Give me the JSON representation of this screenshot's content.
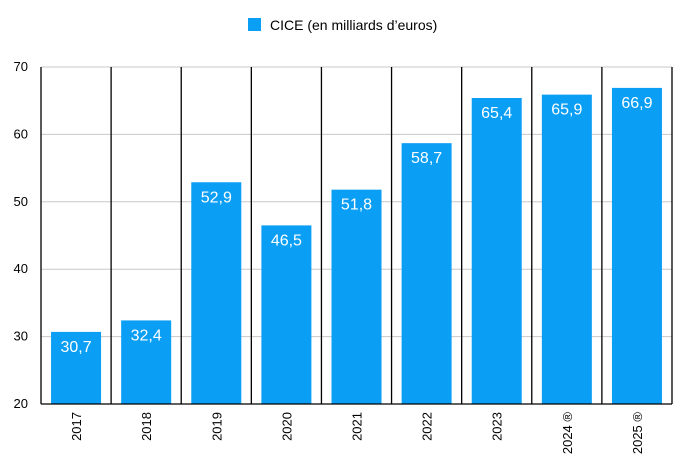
{
  "chart_data": {
    "type": "bar",
    "title": "",
    "xlabel": "",
    "ylabel": "",
    "categories": [
      "2017",
      "2018",
      "2019",
      "2020",
      "2021",
      "2022",
      "2023",
      "2024 ®",
      "2025 ®"
    ],
    "series": [
      {
        "name": "CICE (en milliards d’euros)",
        "color": "#0a9ef5",
        "values": [
          30.7,
          32.4,
          52.9,
          46.5,
          51.8,
          58.7,
          65.4,
          65.9,
          66.9
        ],
        "labels": [
          "30,7",
          "32,4",
          "52,9",
          "46,5",
          "51,8",
          "58,7",
          "65,4",
          "65,9",
          "66,9"
        ]
      }
    ],
    "ylim": [
      20,
      70
    ],
    "yticks": [
      20,
      30,
      40,
      50,
      60,
      70
    ],
    "legend_position": "top-center",
    "grid": true
  }
}
